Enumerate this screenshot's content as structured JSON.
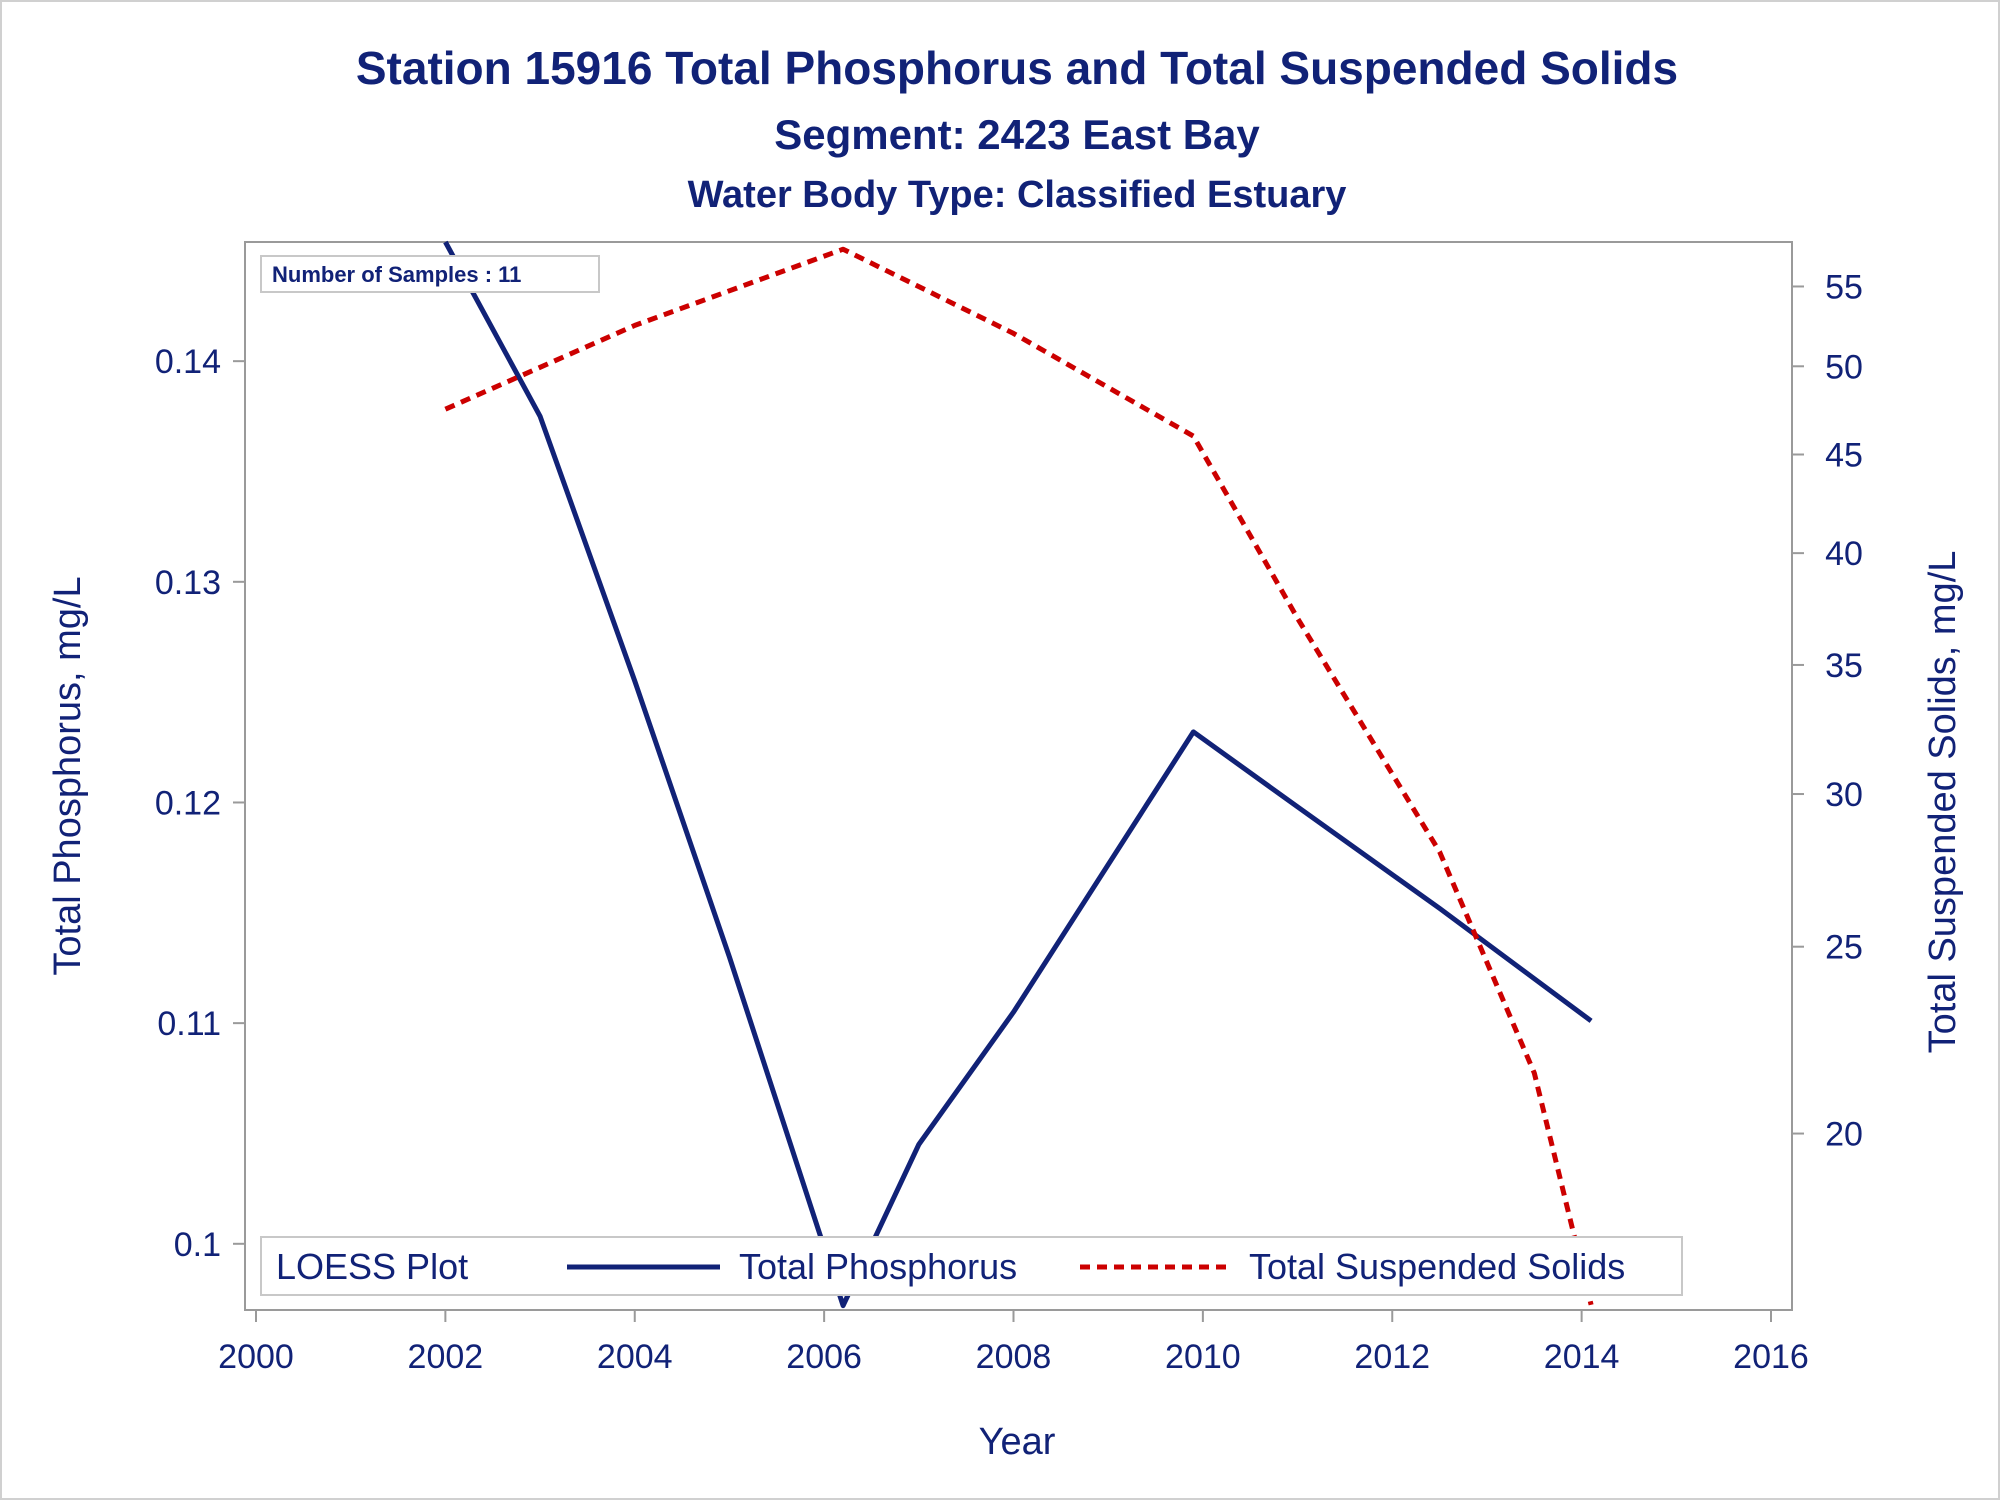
{
  "chart_data": {
    "type": "line",
    "title": "Station 15916  Total Phosphorus and Total Suspended Solids",
    "subtitle": "Segment: 2423  East Bay",
    "subtitle2": "Water Body Type: Classified Estuary",
    "xlabel": "Year",
    "ylabel": "Total Phosphorus, mg/L",
    "y2label": "Total Suspended Solids, mg/L",
    "xlim": [
      2000,
      2016
    ],
    "ylim": [
      0.097,
      0.1454
    ],
    "y2lim": [
      16.2,
      58
    ],
    "y2scale": "log",
    "x_ticks": [
      "2000",
      "2002",
      "2004",
      "2006",
      "2008",
      "2010",
      "2012",
      "2014",
      "2016"
    ],
    "y_ticks": [
      "0.1",
      "0.11",
      "0.12",
      "0.13",
      "0.14"
    ],
    "y2_ticks": [
      "20",
      "25",
      "30",
      "35",
      "40",
      "45",
      "50",
      "55"
    ],
    "annotation": "Number of Samples : 11",
    "legend": {
      "title": "LOESS Plot",
      "position": "bottom-inside"
    },
    "series": [
      {
        "name": "Total Phosphorus",
        "axis": "left",
        "color": "#112277",
        "style": "solid",
        "x": [
          2002.0,
          2003.0,
          2004.0,
          2005.0,
          2006.2,
          2007.0,
          2008.0,
          2009.9,
          2011.0,
          2012.5,
          2014.1
        ],
        "y": [
          0.1454,
          0.1375,
          0.1255,
          0.113,
          0.0972,
          0.1045,
          0.1105,
          0.1232,
          0.1198,
          0.1152,
          0.1101
        ]
      },
      {
        "name": "Total Suspended Solids",
        "axis": "right",
        "color": "#cc0000",
        "style": "dashed",
        "x": [
          2002.0,
          2004.0,
          2006.2,
          2008.0,
          2009.9,
          2011.0,
          2012.5,
          2013.5,
          2014.1
        ],
        "y": [
          47.5,
          52.5,
          57.5,
          52.0,
          46.0,
          37.0,
          28.0,
          21.5,
          16.3
        ]
      }
    ]
  }
}
